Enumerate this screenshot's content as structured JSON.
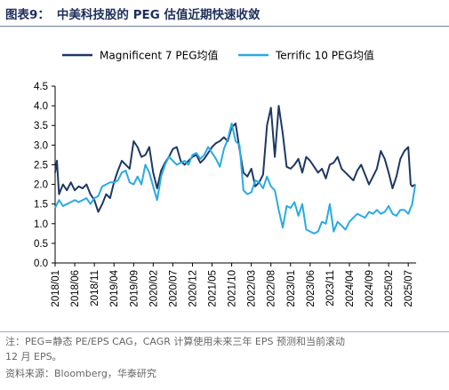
{
  "header": {
    "fig_no": "图表9：",
    "title": "中美科技股的 PEG 估值近期快速收敛"
  },
  "notes": {
    "line1": "注：PEG=静态 PE/EPS CAG，CAGR 计算使用未来三年 EPS 预测和当前滚动",
    "line2": "12 月 EPS。",
    "source": "资料来源：Bloomberg，华泰研究"
  },
  "chart_data": {
    "type": "line",
    "title": "中美科技股的 PEG 估值近期快速收敛",
    "xlabel": "",
    "ylabel": "",
    "ylim": [
      0,
      4.5
    ],
    "yticks": [
      "0.0",
      "0.5",
      "1.0",
      "1.5",
      "2.0",
      "2.5",
      "3.0",
      "3.5",
      "4.0",
      "4.5"
    ],
    "xlim": [
      "2018-01",
      "2025-09"
    ],
    "xticks": [
      "2018/01",
      "2018/06",
      "2018/11",
      "2019/04",
      "2019/09",
      "2020/02",
      "2020/07",
      "2020/12",
      "2021/05",
      "2021/10",
      "2022/03",
      "2022/08",
      "2023/01",
      "2023/06",
      "2023/11",
      "2024/04",
      "2024/09",
      "2025/02",
      "2025/07"
    ],
    "grid": false,
    "legend": "top",
    "series": [
      {
        "name": "Magnificent 7 PEG均值",
        "color": "#1f3864",
        "points": [
          [
            "2018-01",
            2.3
          ],
          [
            "2018-01-15",
            2.6
          ],
          [
            "2018-02",
            1.75
          ],
          [
            "2018-03",
            2.0
          ],
          [
            "2018-04",
            1.85
          ],
          [
            "2018-05",
            2.05
          ],
          [
            "2018-06",
            1.85
          ],
          [
            "2018-07",
            1.95
          ],
          [
            "2018-08",
            1.9
          ],
          [
            "2018-09",
            2.0
          ],
          [
            "2018-10",
            1.75
          ],
          [
            "2018-11",
            1.6
          ],
          [
            "2018-12",
            1.3
          ],
          [
            "2019-01",
            1.5
          ],
          [
            "2019-02",
            1.75
          ],
          [
            "2019-03",
            1.65
          ],
          [
            "2019-04",
            2.05
          ],
          [
            "2019-05",
            2.35
          ],
          [
            "2019-06",
            2.6
          ],
          [
            "2019-07",
            2.5
          ],
          [
            "2019-08",
            2.4
          ],
          [
            "2019-09",
            3.1
          ],
          [
            "2019-10",
            2.95
          ],
          [
            "2019-11",
            2.7
          ],
          [
            "2019-12",
            2.75
          ],
          [
            "2020-01",
            2.95
          ],
          [
            "2020-02",
            2.3
          ],
          [
            "2020-03",
            1.9
          ],
          [
            "2020-04",
            2.35
          ],
          [
            "2020-05",
            2.55
          ],
          [
            "2020-06",
            2.7
          ],
          [
            "2020-07",
            2.9
          ],
          [
            "2020-08",
            2.95
          ],
          [
            "2020-09",
            2.6
          ],
          [
            "2020-10",
            2.5
          ],
          [
            "2020-11",
            2.6
          ],
          [
            "2020-12",
            2.7
          ],
          [
            "2021-01",
            2.75
          ],
          [
            "2021-02",
            2.55
          ],
          [
            "2021-03",
            2.65
          ],
          [
            "2021-04",
            2.8
          ],
          [
            "2021-05",
            2.95
          ],
          [
            "2021-06",
            3.05
          ],
          [
            "2021-07",
            3.1
          ],
          [
            "2021-08",
            3.2
          ],
          [
            "2021-09",
            3.1
          ],
          [
            "2021-10",
            3.45
          ],
          [
            "2021-11",
            3.55
          ],
          [
            "2021-12",
            2.9
          ],
          [
            "2022-01",
            2.3
          ],
          [
            "2022-02",
            2.2
          ],
          [
            "2022-03",
            2.4
          ],
          [
            "2022-04",
            1.95
          ],
          [
            "2022-05",
            2.05
          ],
          [
            "2022-06",
            2.25
          ],
          [
            "2022-07",
            3.5
          ],
          [
            "2022-08",
            3.95
          ],
          [
            "2022-09",
            2.7
          ],
          [
            "2022-10",
            4.0
          ],
          [
            "2022-11",
            3.3
          ],
          [
            "2022-12",
            2.45
          ],
          [
            "2023-01",
            2.4
          ],
          [
            "2023-02",
            2.5
          ],
          [
            "2023-03",
            2.65
          ],
          [
            "2023-04",
            2.3
          ],
          [
            "2023-05",
            2.7
          ],
          [
            "2023-06",
            2.6
          ],
          [
            "2023-07",
            2.45
          ],
          [
            "2023-08",
            2.3
          ],
          [
            "2023-09",
            2.4
          ],
          [
            "2023-10",
            2.15
          ],
          [
            "2023-11",
            2.5
          ],
          [
            "2023-12",
            2.55
          ],
          [
            "2024-01",
            2.7
          ],
          [
            "2024-02",
            2.4
          ],
          [
            "2024-03",
            2.3
          ],
          [
            "2024-04",
            2.2
          ],
          [
            "2024-05",
            2.1
          ],
          [
            "2024-06",
            2.35
          ],
          [
            "2024-07",
            2.5
          ],
          [
            "2024-08",
            2.25
          ],
          [
            "2024-09",
            2.0
          ],
          [
            "2024-10",
            2.2
          ],
          [
            "2024-11",
            2.4
          ],
          [
            "2024-12",
            2.85
          ],
          [
            "2025-01",
            2.65
          ],
          [
            "2025-02",
            2.3
          ],
          [
            "2025-03",
            1.9
          ],
          [
            "2025-04",
            2.2
          ],
          [
            "2025-05",
            2.65
          ],
          [
            "2025-06",
            2.85
          ],
          [
            "2025-07",
            2.95
          ],
          [
            "2025-07-20",
            2.0
          ],
          [
            "2025-08",
            1.95
          ],
          [
            "2025-08-25",
            2.0
          ]
        ]
      },
      {
        "name": "Terrific 10 PEG均值",
        "color": "#29abe2",
        "points": [
          [
            "2018-01",
            1.4
          ],
          [
            "2018-02",
            1.6
          ],
          [
            "2018-03",
            1.45
          ],
          [
            "2018-04",
            1.5
          ],
          [
            "2018-05",
            1.55
          ],
          [
            "2018-06",
            1.6
          ],
          [
            "2018-07",
            1.55
          ],
          [
            "2018-08",
            1.6
          ],
          [
            "2018-09",
            1.65
          ],
          [
            "2018-10",
            1.5
          ],
          [
            "2018-11",
            1.65
          ],
          [
            "2018-12",
            1.7
          ],
          [
            "2019-01",
            1.95
          ],
          [
            "2019-02",
            2.0
          ],
          [
            "2019-03",
            2.05
          ],
          [
            "2019-04",
            2.05
          ],
          [
            "2019-05",
            2.1
          ],
          [
            "2019-06",
            2.3
          ],
          [
            "2019-07",
            2.35
          ],
          [
            "2019-08",
            2.05
          ],
          [
            "2019-09",
            2.0
          ],
          [
            "2019-10",
            2.2
          ],
          [
            "2019-11",
            2.0
          ],
          [
            "2019-12",
            2.5
          ],
          [
            "2020-01",
            2.3
          ],
          [
            "2020-02",
            1.95
          ],
          [
            "2020-03",
            1.6
          ],
          [
            "2020-04",
            2.2
          ],
          [
            "2020-05",
            2.5
          ],
          [
            "2020-06",
            2.7
          ],
          [
            "2020-07",
            2.6
          ],
          [
            "2020-08",
            2.5
          ],
          [
            "2020-09",
            2.55
          ],
          [
            "2020-10",
            2.6
          ],
          [
            "2020-11",
            2.5
          ],
          [
            "2020-12",
            2.75
          ],
          [
            "2021-01",
            2.8
          ],
          [
            "2021-02",
            2.65
          ],
          [
            "2021-03",
            2.75
          ],
          [
            "2021-04",
            2.95
          ],
          [
            "2021-05",
            2.8
          ],
          [
            "2021-06",
            2.65
          ],
          [
            "2021-07",
            2.45
          ],
          [
            "2021-08",
            2.9
          ],
          [
            "2021-09",
            3.15
          ],
          [
            "2021-10",
            3.55
          ],
          [
            "2021-11",
            3.1
          ],
          [
            "2021-12",
            3.0
          ],
          [
            "2022-01",
            1.85
          ],
          [
            "2022-02",
            1.75
          ],
          [
            "2022-03",
            1.8
          ],
          [
            "2022-04",
            2.1
          ],
          [
            "2022-05",
            2.05
          ],
          [
            "2022-06",
            1.9
          ],
          [
            "2022-07",
            2.2
          ],
          [
            "2022-08",
            1.95
          ],
          [
            "2022-09",
            1.85
          ],
          [
            "2022-10",
            1.35
          ],
          [
            "2022-11",
            0.9
          ],
          [
            "2022-12",
            1.45
          ],
          [
            "2023-01",
            1.4
          ],
          [
            "2023-02",
            1.55
          ],
          [
            "2023-03",
            1.2
          ],
          [
            "2023-04",
            1.5
          ],
          [
            "2023-05",
            0.85
          ],
          [
            "2023-06",
            0.8
          ],
          [
            "2023-07",
            0.75
          ],
          [
            "2023-08",
            0.8
          ],
          [
            "2023-09",
            1.05
          ],
          [
            "2023-10",
            1.0
          ],
          [
            "2023-11",
            1.5
          ],
          [
            "2023-12",
            0.8
          ],
          [
            "2024-01",
            1.05
          ],
          [
            "2024-02",
            0.95
          ],
          [
            "2024-03",
            0.85
          ],
          [
            "2024-04",
            1.05
          ],
          [
            "2024-05",
            1.15
          ],
          [
            "2024-06",
            1.25
          ],
          [
            "2024-07",
            1.2
          ],
          [
            "2024-08",
            1.15
          ],
          [
            "2024-09",
            1.3
          ],
          [
            "2024-10",
            1.25
          ],
          [
            "2024-11",
            1.35
          ],
          [
            "2024-12",
            1.25
          ],
          [
            "2025-01",
            1.3
          ],
          [
            "2025-02",
            1.45
          ],
          [
            "2025-03",
            1.25
          ],
          [
            "2025-04",
            1.2
          ],
          [
            "2025-05",
            1.35
          ],
          [
            "2025-06",
            1.35
          ],
          [
            "2025-07",
            1.25
          ],
          [
            "2025-08",
            1.5
          ],
          [
            "2025-08-25",
            2.0
          ]
        ]
      }
    ]
  }
}
